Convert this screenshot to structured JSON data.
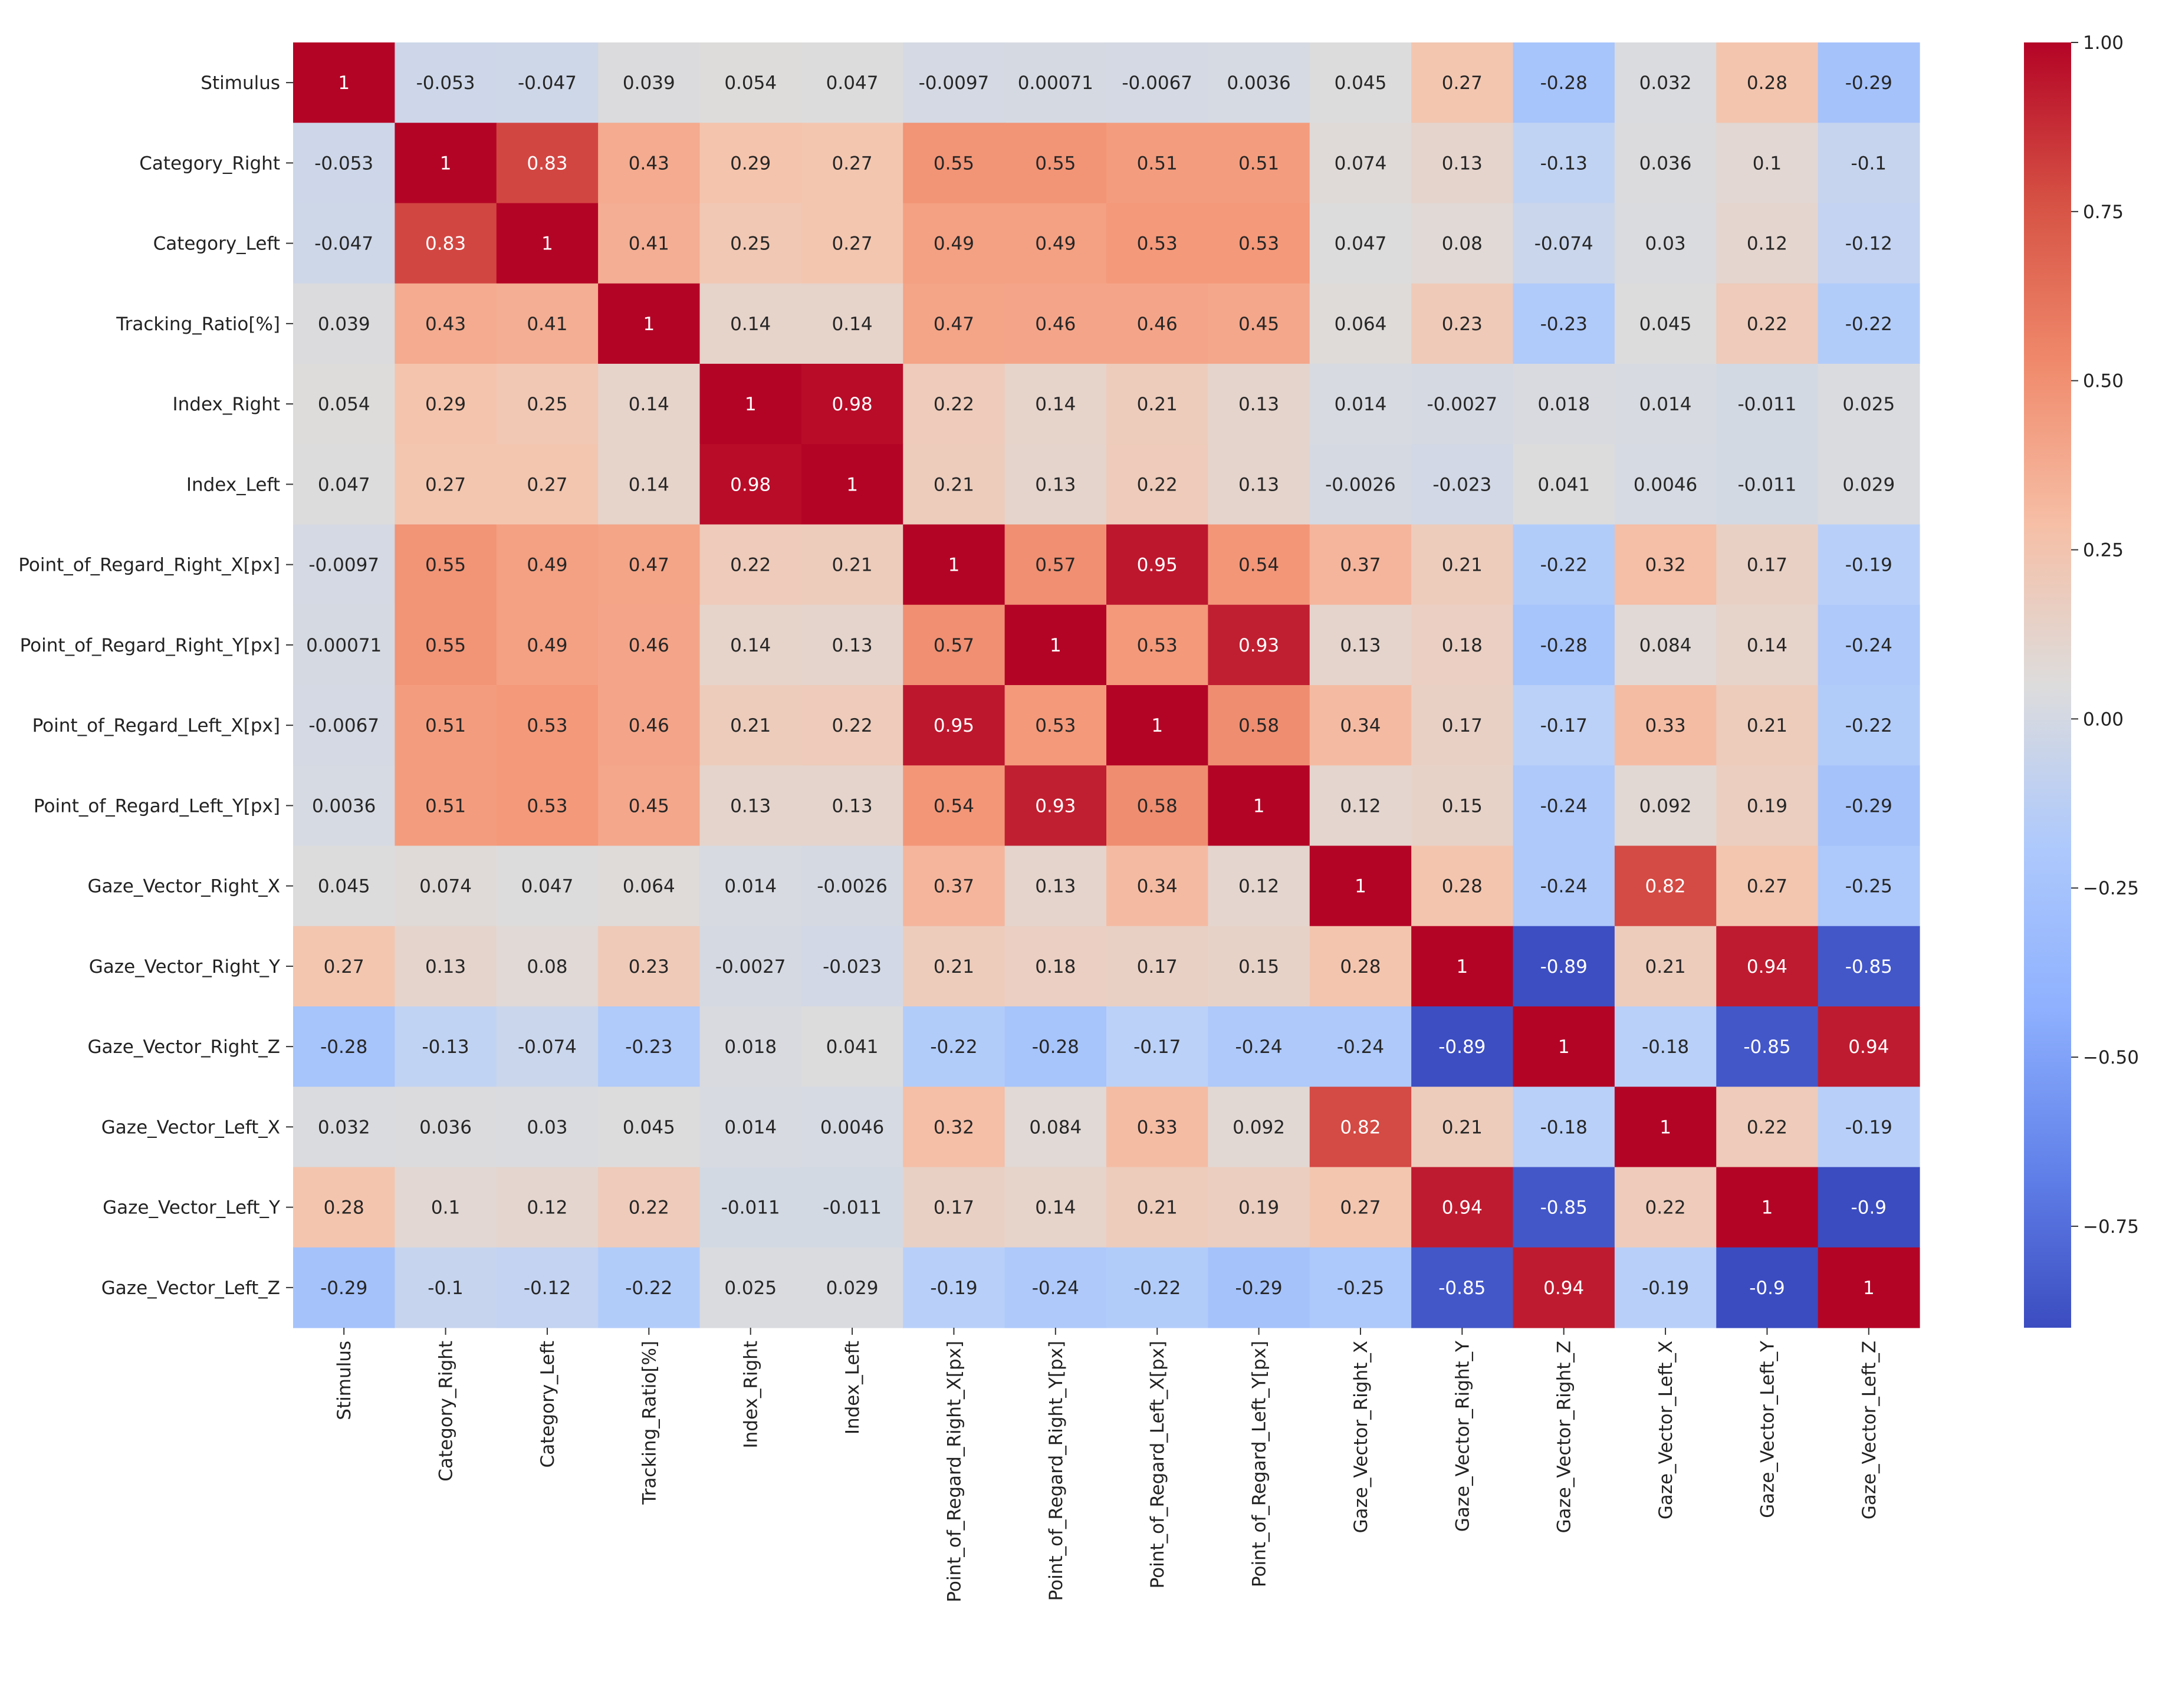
{
  "chart_data": {
    "type": "heatmap",
    "title": "",
    "xlabel": "",
    "ylabel": "",
    "colormap": "coolwarm",
    "value_range": [
      -0.9,
      1.0
    ],
    "labels": [
      "Stimulus",
      "Category_Right",
      "Category_Left",
      "Tracking_Ratio[%]",
      "Index_Right",
      "Index_Left",
      "Point_of_Regard_Right_X[px]",
      "Point_of_Regard_Right_Y[px]",
      "Point_of_Regard_Left_X[px]",
      "Point_of_Regard_Left_Y[px]",
      "Gaze_Vector_Right_X",
      "Gaze_Vector_Right_Y",
      "Gaze_Vector_Right_Z",
      "Gaze_Vector_Left_X",
      "Gaze_Vector_Left_Y",
      "Gaze_Vector_Left_Z"
    ],
    "matrix": [
      [
        "1",
        "-0.053",
        "-0.047",
        "0.039",
        "0.054",
        "0.047",
        "-0.0097",
        "0.00071",
        "-0.0067",
        "0.0036",
        "0.045",
        "0.27",
        "-0.28",
        "0.032",
        "0.28",
        "-0.29"
      ],
      [
        "-0.053",
        "1",
        "0.83",
        "0.43",
        "0.29",
        "0.27",
        "0.55",
        "0.55",
        "0.51",
        "0.51",
        "0.074",
        "0.13",
        "-0.13",
        "0.036",
        "0.1",
        "-0.1"
      ],
      [
        "-0.047",
        "0.83",
        "1",
        "0.41",
        "0.25",
        "0.27",
        "0.49",
        "0.49",
        "0.53",
        "0.53",
        "0.047",
        "0.08",
        "-0.074",
        "0.03",
        "0.12",
        "-0.12"
      ],
      [
        "0.039",
        "0.43",
        "0.41",
        "1",
        "0.14",
        "0.14",
        "0.47",
        "0.46",
        "0.46",
        "0.45",
        "0.064",
        "0.23",
        "-0.23",
        "0.045",
        "0.22",
        "-0.22"
      ],
      [
        "0.054",
        "0.29",
        "0.25",
        "0.14",
        "1",
        "0.98",
        "0.22",
        "0.14",
        "0.21",
        "0.13",
        "0.014",
        "-0.0027",
        "0.018",
        "0.014",
        "-0.011",
        "0.025"
      ],
      [
        "0.047",
        "0.27",
        "0.27",
        "0.14",
        "0.98",
        "1",
        "0.21",
        "0.13",
        "0.22",
        "0.13",
        "-0.0026",
        "-0.023",
        "0.041",
        "0.0046",
        "-0.011",
        "0.029"
      ],
      [
        "-0.0097",
        "0.55",
        "0.49",
        "0.47",
        "0.22",
        "0.21",
        "1",
        "0.57",
        "0.95",
        "0.54",
        "0.37",
        "0.21",
        "-0.22",
        "0.32",
        "0.17",
        "-0.19"
      ],
      [
        "0.00071",
        "0.55",
        "0.49",
        "0.46",
        "0.14",
        "0.13",
        "0.57",
        "1",
        "0.53",
        "0.93",
        "0.13",
        "0.18",
        "-0.28",
        "0.084",
        "0.14",
        "-0.24"
      ],
      [
        "-0.0067",
        "0.51",
        "0.53",
        "0.46",
        "0.21",
        "0.22",
        "0.95",
        "0.53",
        "1",
        "0.58",
        "0.34",
        "0.17",
        "-0.17",
        "0.33",
        "0.21",
        "-0.22"
      ],
      [
        "0.0036",
        "0.51",
        "0.53",
        "0.45",
        "0.13",
        "0.13",
        "0.54",
        "0.93",
        "0.58",
        "1",
        "0.12",
        "0.15",
        "-0.24",
        "0.092",
        "0.19",
        "-0.29"
      ],
      [
        "0.045",
        "0.074",
        "0.047",
        "0.064",
        "0.014",
        "-0.0026",
        "0.37",
        "0.13",
        "0.34",
        "0.12",
        "1",
        "0.28",
        "-0.24",
        "0.82",
        "0.27",
        "-0.25"
      ],
      [
        "0.27",
        "0.13",
        "0.08",
        "0.23",
        "-0.0027",
        "-0.023",
        "0.21",
        "0.18",
        "0.17",
        "0.15",
        "0.28",
        "1",
        "-0.89",
        "0.21",
        "0.94",
        "-0.85"
      ],
      [
        "-0.28",
        "-0.13",
        "-0.074",
        "-0.23",
        "0.018",
        "0.041",
        "-0.22",
        "-0.28",
        "-0.17",
        "-0.24",
        "-0.24",
        "-0.89",
        "1",
        "-0.18",
        "-0.85",
        "0.94"
      ],
      [
        "0.032",
        "0.036",
        "0.03",
        "0.045",
        "0.014",
        "0.0046",
        "0.32",
        "0.084",
        "0.33",
        "0.092",
        "0.82",
        "0.21",
        "-0.18",
        "1",
        "0.22",
        "-0.19"
      ],
      [
        "0.28",
        "0.1",
        "0.12",
        "0.22",
        "-0.011",
        "-0.011",
        "0.17",
        "0.14",
        "0.21",
        "0.19",
        "0.27",
        "0.94",
        "-0.85",
        "0.22",
        "1",
        "-0.9"
      ],
      [
        "-0.29",
        "-0.1",
        "-0.12",
        "-0.22",
        "0.025",
        "0.029",
        "-0.19",
        "-0.24",
        "-0.22",
        "-0.29",
        "-0.25",
        "-0.85",
        "0.94",
        "-0.19",
        "-0.9",
        "1"
      ]
    ],
    "colorbar": {
      "ticks": [
        1.0,
        0.75,
        0.5,
        0.25,
        0.0,
        -0.25,
        -0.5,
        -0.75
      ],
      "tick_labels": [
        "1.00",
        "0.75",
        "0.50",
        "0.25",
        "0.00",
        "−0.25",
        "−0.50",
        "−0.75"
      ]
    }
  }
}
